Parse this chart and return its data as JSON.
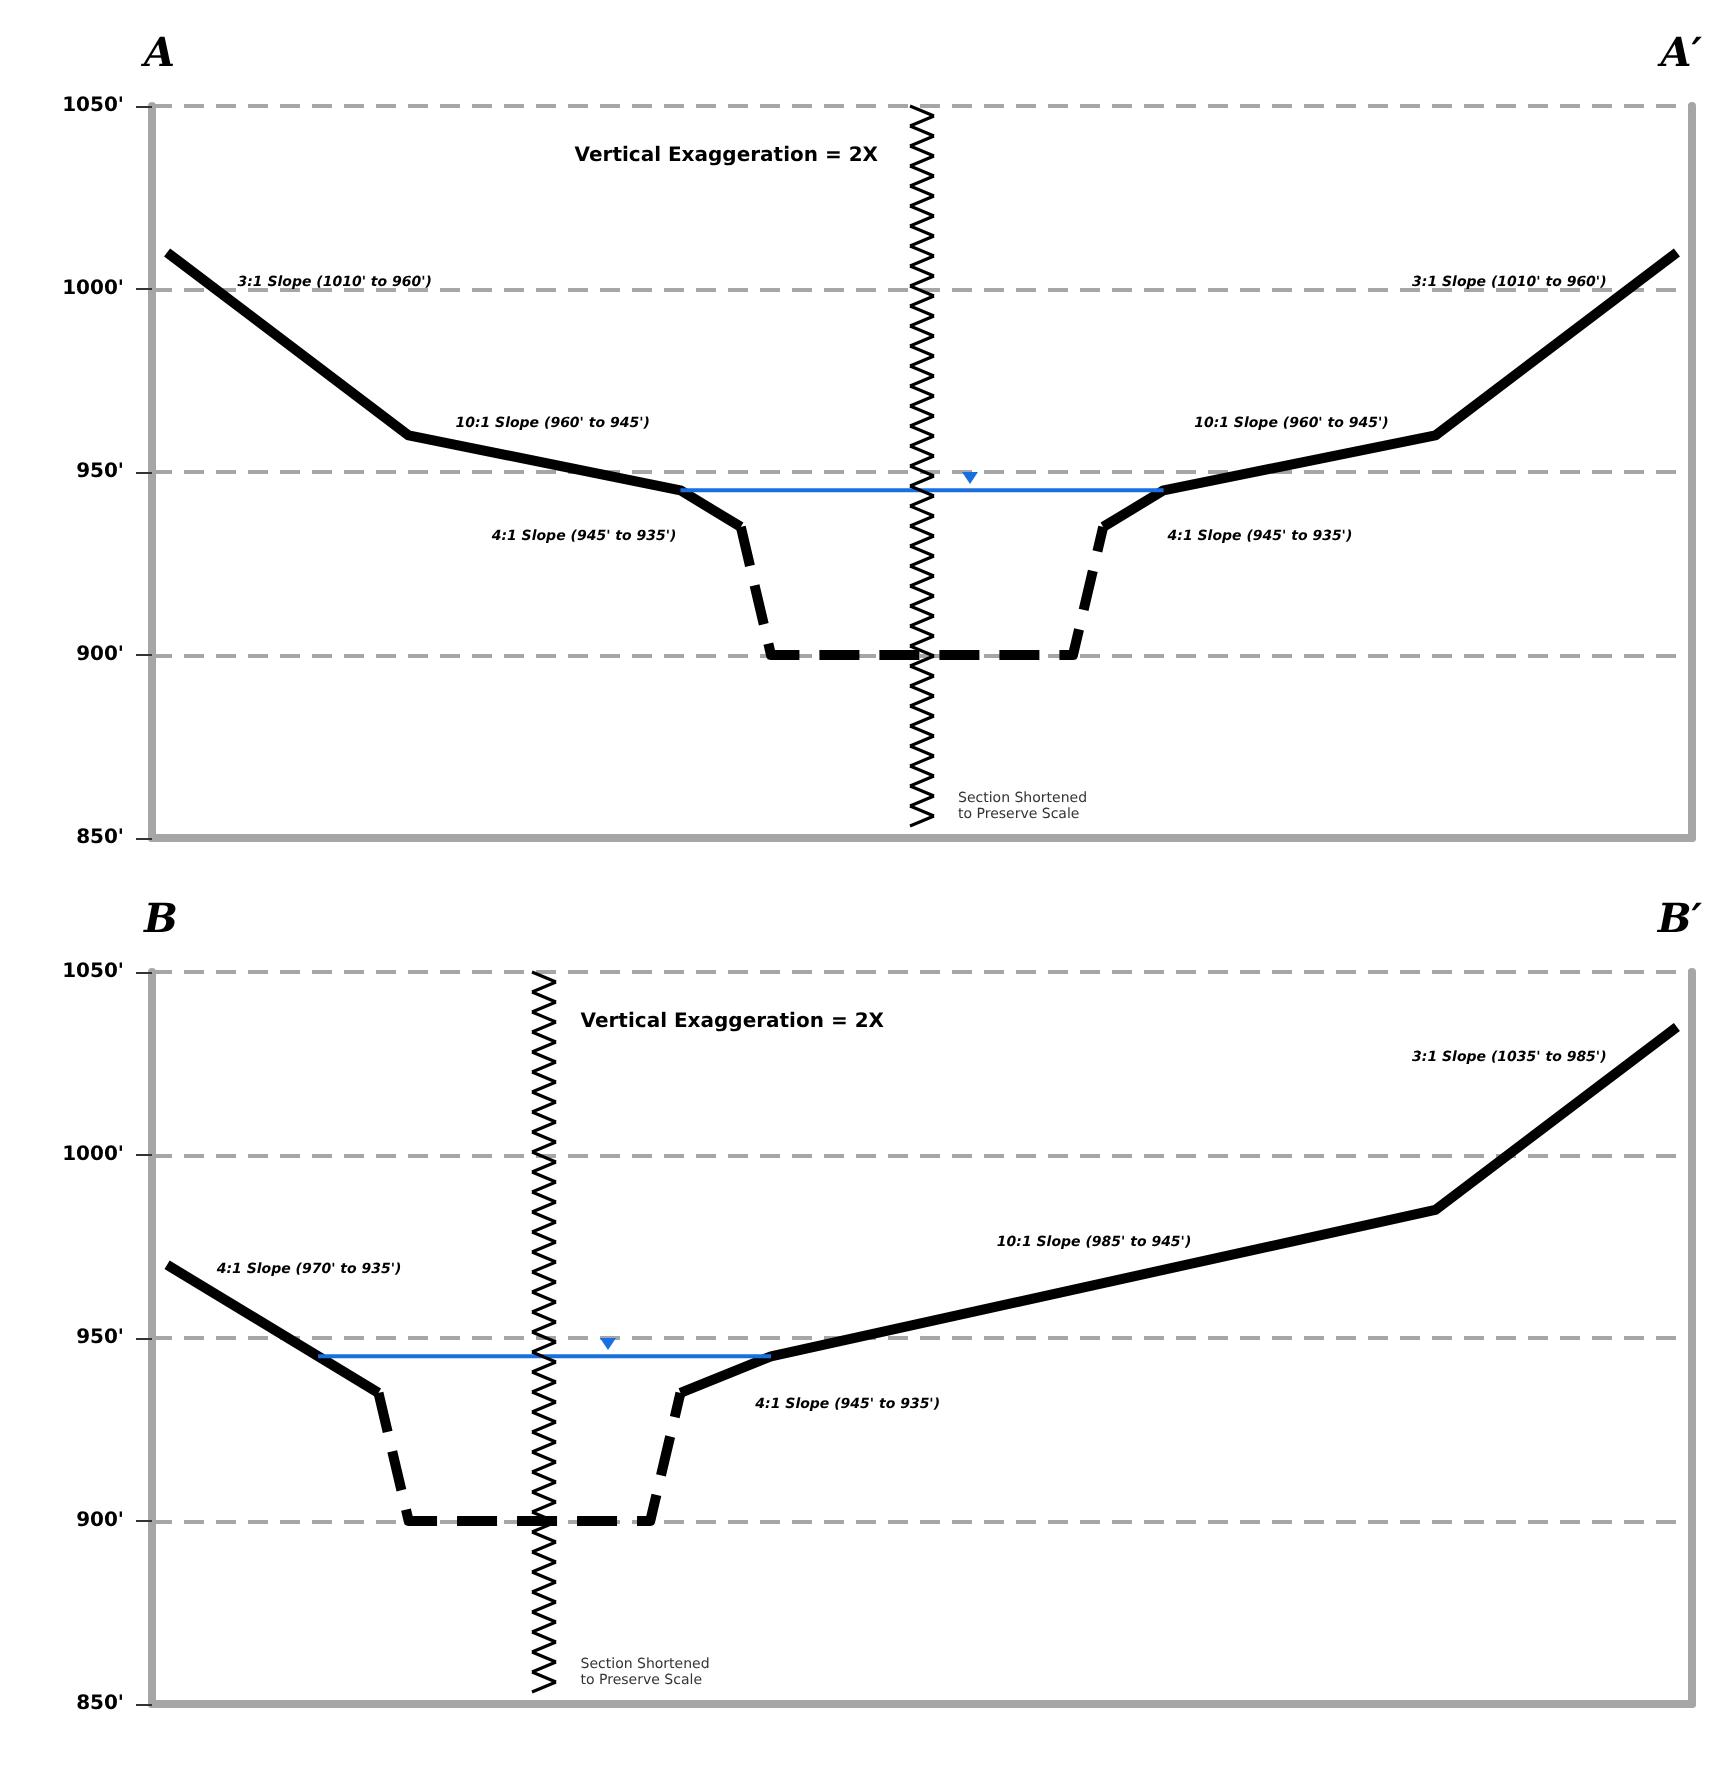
{
  "chart_data": [
    {
      "type": "line",
      "title": "A",
      "annotations": [
        "A′",
        "Vertical Exaggeration = 2X",
        "Section Shortened\nto Preserve Scale",
        "3:1 Slope (1010' to 960')",
        "10:1 Slope (960' to 945')",
        "4:1 Slope (945' to 935')",
        "4:1 Slope (945' to 935')",
        "10:1 Slope (960' to 945')",
        "3:1 Slope (1010' to 960')"
      ],
      "categories": [
        null,
        null,
        null,
        null,
        null,
        null,
        null,
        null,
        null,
        null,
        null,
        null,
        null,
        null,
        null,
        null,
        null,
        null,
        null,
        null,
        null,
        null,
        null,
        null,
        null,
        null,
        null,
        null,
        null,
        null,
        null,
        null,
        null,
        null,
        null,
        null,
        null,
        null,
        null,
        null,
        null,
        null,
        null,
        null,
        null,
        null,
        null,
        null,
        null,
        null,
        null
      ],
      "series": [
        {
          "color": "#000000",
          "line_style": "solid",
          "values": [
            1010,
            null,
            null,
            null,
            null,
            null,
            null,
            null,
            960,
            null,
            null,
            null,
            null,
            null,
            null,
            null,
            null,
            945,
            null,
            935,
            null,
            null,
            null,
            null,
            null,
            null,
            null,
            null,
            null,
            null,
            null,
            null,
            null,
            null,
            null,
            null,
            null,
            null,
            null,
            null,
            null,
            null,
            null,
            null,
            null,
            null,
            null,
            null,
            null,
            null,
            null
          ]
        },
        {
          "color": "#000000",
          "line_style": "solid",
          "values": [
            null,
            null,
            null,
            null,
            null,
            null,
            null,
            null,
            null,
            null,
            null,
            null,
            null,
            null,
            null,
            null,
            null,
            null,
            null,
            null,
            null,
            null,
            null,
            null,
            null,
            null,
            null,
            null,
            null,
            null,
            null,
            935,
            null,
            945,
            null,
            null,
            null,
            null,
            null,
            null,
            null,
            null,
            960,
            null,
            null,
            null,
            null,
            null,
            null,
            null,
            1010
          ]
        },
        {
          "color": "#000000",
          "line_style": "dashed",
          "values": [
            null,
            null,
            null,
            null,
            null,
            null,
            null,
            null,
            null,
            null,
            null,
            null,
            null,
            null,
            null,
            null,
            null,
            null,
            null,
            935,
            900,
            null,
            null,
            null,
            null,
            null,
            null,
            null,
            null,
            null,
            900,
            935,
            null,
            null,
            null,
            null,
            null,
            null,
            null,
            null,
            null,
            null,
            null,
            null,
            null,
            null,
            null,
            null,
            null,
            null,
            null
          ]
        },
        {
          "color": "#1a6fe0",
          "line_style": "solid",
          "values": [
            null,
            null,
            null,
            null,
            null,
            null,
            null,
            null,
            null,
            null,
            null,
            null,
            null,
            null,
            null,
            null,
            null,
            945,
            null,
            null,
            null,
            null,
            null,
            null,
            null,
            null,
            null,
            null,
            null,
            null,
            null,
            null,
            null,
            945,
            null,
            null,
            null,
            null,
            null,
            null,
            null,
            null,
            null,
            null,
            null,
            null,
            null,
            null,
            null,
            null,
            null
          ]
        }
      ],
      "ylim": [
        850,
        1050
      ],
      "yticks": [
        {
          "value": 850,
          "label": "850'"
        },
        {
          "value": 900,
          "label": "900'"
        },
        {
          "value": 950,
          "label": "950'"
        },
        {
          "value": 1000,
          "label": "1000'"
        },
        {
          "value": 1050,
          "label": "1050'"
        }
      ],
      "tick_labels": "y",
      "grid": "y"
    },
    {
      "type": "line",
      "title": "B",
      "annotations": [
        "B′",
        "Vertical Exaggeration = 2X",
        "Section Shortened\nto Preserve Scale",
        "4:1 Slope (970' to 935')",
        "4:1 Slope (945' to 935')",
        "10:1 Slope (985' to 945')",
        "3:1 Slope (1035' to 985')"
      ],
      "categories": [
        null,
        null,
        null,
        null,
        null,
        null,
        null,
        null,
        null,
        null,
        null,
        null,
        null,
        null,
        null,
        null,
        null,
        null,
        null,
        null,
        null,
        null,
        null,
        null,
        null,
        null,
        null,
        null,
        null,
        null,
        null,
        null,
        null,
        null,
        null,
        null,
        null,
        null,
        null,
        null,
        null,
        null,
        null,
        null,
        null,
        null,
        null,
        null,
        null,
        null,
        null
      ],
      "series": [
        {
          "color": "#000000",
          "line_style": "solid",
          "values": [
            970,
            null,
            null,
            null,
            null,
            null,
            null,
            935,
            null,
            null,
            null,
            null,
            null,
            null,
            null,
            null,
            null,
            null,
            null,
            null,
            null,
            null,
            null,
            null,
            null,
            null,
            null,
            null,
            null,
            null,
            null,
            null,
            null,
            null,
            null,
            null,
            null,
            null,
            null,
            null,
            null,
            null,
            null,
            null,
            null,
            null,
            null,
            null,
            null,
            null,
            null
          ]
        },
        {
          "color": "#000000",
          "line_style": "solid",
          "values": [
            null,
            null,
            null,
            null,
            null,
            null,
            null,
            null,
            null,
            null,
            null,
            null,
            null,
            null,
            null,
            null,
            null,
            935,
            null,
            null,
            945,
            null,
            null,
            null,
            null,
            null,
            null,
            null,
            null,
            null,
            null,
            null,
            null,
            null,
            null,
            null,
            null,
            null,
            null,
            null,
            null,
            null,
            985,
            null,
            null,
            null,
            null,
            null,
            null,
            null,
            1035
          ]
        },
        {
          "color": "#000000",
          "line_style": "dashed",
          "values": [
            null,
            null,
            null,
            null,
            null,
            null,
            null,
            935,
            900,
            null,
            null,
            null,
            null,
            null,
            null,
            null,
            900,
            935,
            null,
            null,
            null,
            null,
            null,
            null,
            null,
            null,
            null,
            null,
            null,
            null,
            null,
            null,
            null,
            null,
            null,
            null,
            null,
            null,
            null,
            null,
            null,
            null,
            null,
            null,
            null,
            null,
            null,
            null,
            null,
            null,
            null
          ]
        },
        {
          "color": "#1a6fe0",
          "line_style": "solid",
          "values": [
            null,
            null,
            null,
            null,
            null,
            945,
            null,
            null,
            null,
            null,
            null,
            null,
            null,
            null,
            null,
            null,
            null,
            null,
            null,
            null,
            945,
            null,
            null,
            null,
            null,
            null,
            null,
            null,
            null,
            null,
            null,
            null,
            null,
            null,
            null,
            null,
            null,
            null,
            null,
            null,
            null,
            null,
            null,
            null,
            null,
            null,
            null,
            null,
            null,
            null,
            null
          ]
        }
      ],
      "ylim": [
        850,
        1050
      ],
      "yticks": [
        {
          "value": 850,
          "label": "850'"
        },
        {
          "value": 900,
          "label": "900'"
        },
        {
          "value": 950,
          "label": "950'"
        },
        {
          "value": 1000,
          "label": "1000'"
        },
        {
          "value": 1050,
          "label": "1050'"
        }
      ],
      "tick_labels": "y",
      "grid": "y"
    }
  ]
}
